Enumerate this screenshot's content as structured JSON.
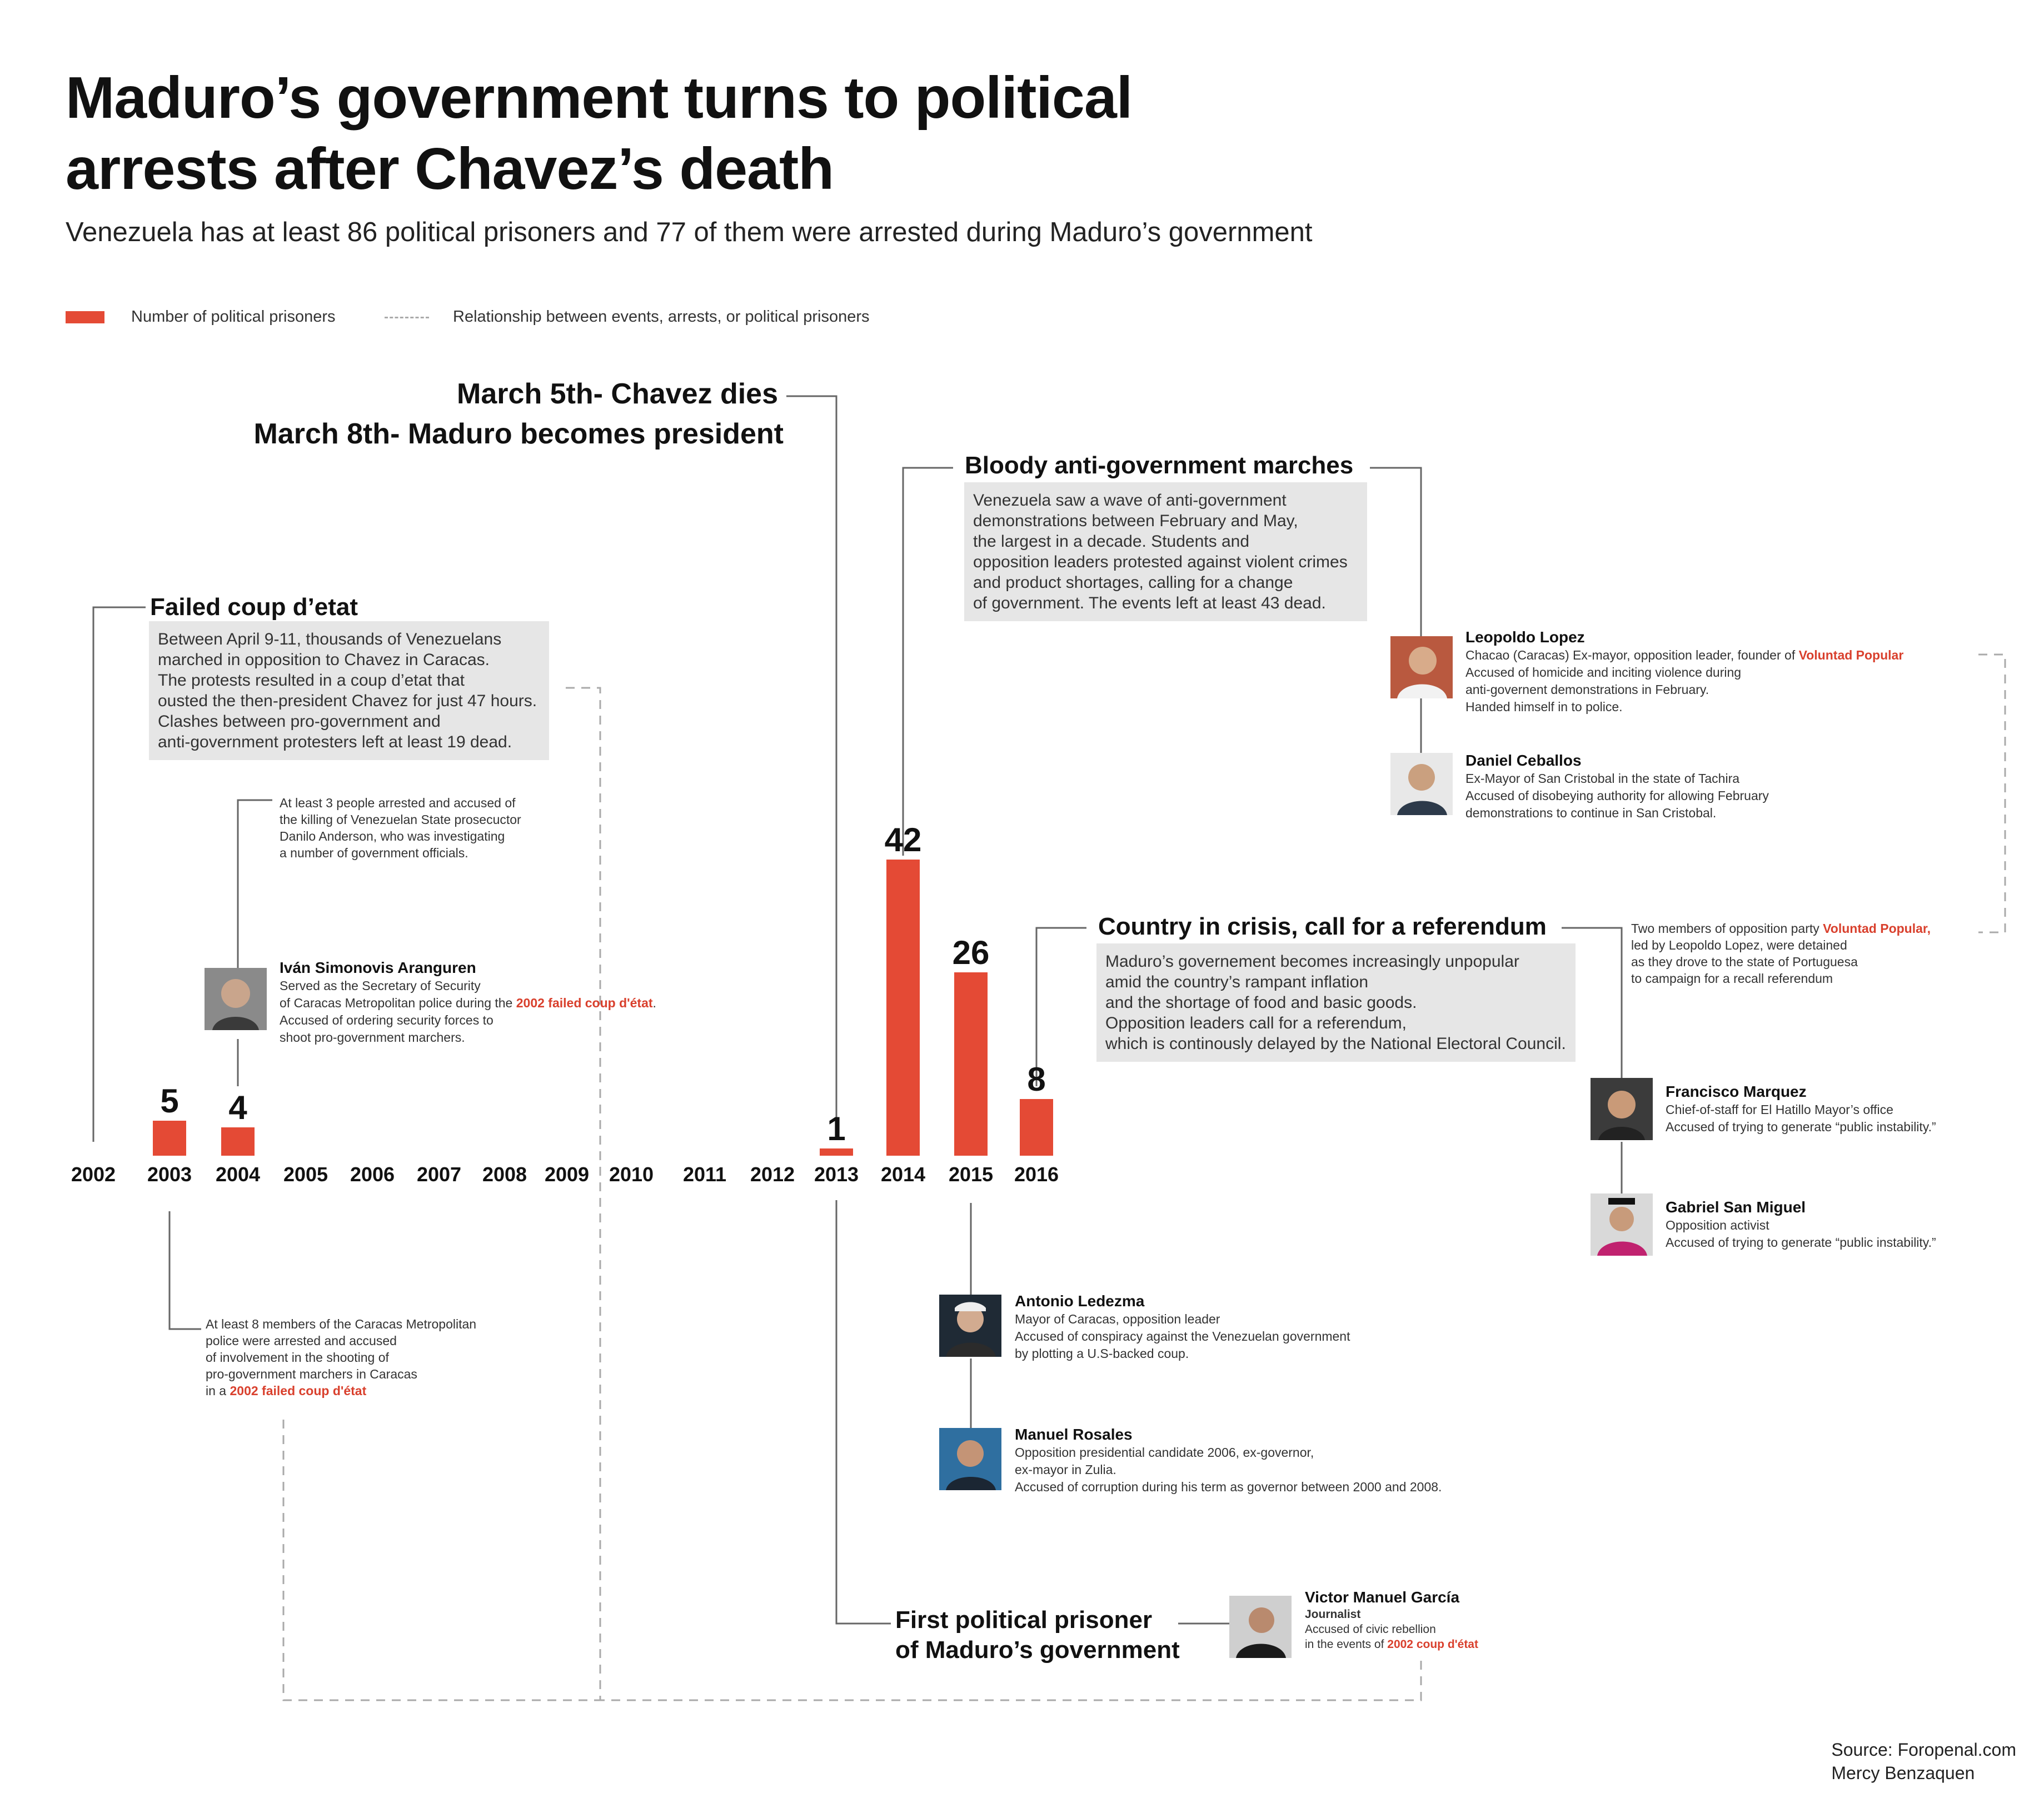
{
  "title_lines": [
    "Maduro’s government turns to political",
    "arrests after Chavez’s death"
  ],
  "subtitle": "Venezuela has at least 86 political prisoners and 77 of them were arrested during Maduro’s government",
  "legend": {
    "bars_label": "Number of political prisoners",
    "dashed_label": "Relationship between events, arrests, or political prisoners"
  },
  "colors": {
    "bar": "#e44a35",
    "highlight": "#d9402d",
    "box": "#e6e6e6",
    "dashed": "#aaaaaa"
  },
  "chart_data": {
    "type": "bar",
    "categories": [
      "2002",
      "2003",
      "2004",
      "2005",
      "2006",
      "2007",
      "2008",
      "2009",
      "2010",
      "2011",
      "2012",
      "2013",
      "2014",
      "2015",
      "2016"
    ],
    "values": [
      0,
      5,
      4,
      0,
      0,
      0,
      0,
      0,
      0,
      0,
      0,
      1,
      42,
      26,
      8
    ],
    "data_labels": [
      "",
      "5",
      "4",
      "",
      "",
      "",
      "",
      "",
      "",
      "",
      "",
      "1",
      "42",
      "26",
      "8"
    ],
    "title": "",
    "xlabel": "",
    "ylabel": "",
    "ylim": [
      0,
      42
    ],
    "grid": false,
    "legend_position": "top-left"
  },
  "events": {
    "chavez": {
      "line1": "March 5th- Chavez dies",
      "line2": "March 8th- Maduro becomes president"
    },
    "coup": {
      "heading": "Failed coup d’etat",
      "body": [
        "Between April 9-11, thousands of Venezuelans",
        "marched in opposition to Chavez in Caracas.",
        "The protests resulted in a coup d’etat that",
        "ousted the then-president Chavez for just 47 hours.",
        "Clashes between pro-government and",
        "anti-government protesters left at least 19 dead."
      ]
    },
    "marches": {
      "heading": "Bloody anti-government marches",
      "body": [
        "Venezuela saw a wave of anti-government",
        "demonstrations between February and May,",
        "the largest in a decade. Students and",
        "opposition leaders protested against violent crimes",
        "and product shortages, calling for a change",
        "of government. The events left at least 43 dead."
      ]
    },
    "crisis": {
      "heading": "Country in crisis, call for a referendum",
      "body": [
        "Maduro’s governement becomes increasingly unpopular",
        "amid the country’s rampant inflation",
        "and the shortage of food and basic goods.",
        "Opposition leaders call for a referendum,",
        "which is continously delayed by the National Electoral Council."
      ]
    },
    "first_prisoner": {
      "line1": "First political prisoner",
      "line2": "of Maduro’s government"
    }
  },
  "notes": {
    "danilo": [
      "At least 3 people arrested and accused of",
      "the killing of Venezuelan State prosecuctor",
      "Danilo Anderson, who was investigating",
      "a number of government officials."
    ],
    "police": {
      "lines": [
        "At least 8 members of the Caracas Metropolitan",
        "police were arrested and accused",
        "of involvement in the shooting of",
        "pro-government marchers in Caracas"
      ],
      "last_prefix": "in a ",
      "last_red": "2002 failed coup d'état"
    },
    "voluntad": {
      "line1_prefix": "Two members of opposition party ",
      "line1_red": "Voluntad Popular,",
      "lines": [
        "led by Leopoldo Lopez,  were detained",
        "as they drove to  the state of Portuguesa",
        "to campaign for a recall referendum"
      ]
    }
  },
  "people": {
    "simonovis": {
      "name": "Iván Simonovis Aranguren",
      "line1": "Served as the Secretary of Security",
      "line2_prefix": "of Caracas Metropolitan police during the ",
      "line2_red": "2002 failed coup d'état",
      "line2_suffix": ".",
      "line3": "Accused of ordering security forces to",
      "line4": "shoot pro-government marchers."
    },
    "lopez": {
      "name": "Leopoldo Lopez",
      "line1_prefix": "Chacao (Caracas) Ex-mayor, opposition leader, founder of ",
      "line1_red": "Voluntad Popular",
      "lines": [
        "Accused of homicide and inciting violence during",
        "anti-governent demonstrations in February.",
        "Handed himself in to police."
      ]
    },
    "ceballos": {
      "name": "Daniel Ceballos",
      "lines": [
        "Ex-Mayor of San Cristobal in the state of Tachira",
        "Accused of disobeying authority for allowing February",
        "demonstrations to continue in San Cristobal."
      ]
    },
    "marquez": {
      "name": "Francisco Marquez",
      "lines": [
        "Chief-of-staff for El Hatillo Mayor’s office",
        "Accused of trying to generate “public instability.”"
      ]
    },
    "sanmiguel": {
      "name": "Gabriel San Miguel",
      "lines": [
        "Opposition activist",
        "Accused of trying to generate “public instability.”"
      ]
    },
    "ledezma": {
      "name": "Antonio Ledezma",
      "lines": [
        "Mayor of Caracas, opposition leader",
        "Accused of conspiracy against the Venezuelan government",
        "by plotting a U.S-backed coup."
      ]
    },
    "rosales": {
      "name": "Manuel Rosales",
      "lines": [
        "Opposition presidential candidate 2006,  ex-governor,",
        "ex-mayor in Zulia.",
        "Accused of corruption during his term as governor between 2000 and 2008."
      ]
    },
    "garcia": {
      "name": "Victor Manuel García",
      "role": "Journalist",
      "line1": "Accused of civic rebellion",
      "line2_prefix": "in the events of ",
      "line2_red": "2002 coup d'état"
    }
  },
  "source": {
    "line1": "Source: Foropenal.com",
    "line2": "Mercy Benzaquen"
  }
}
